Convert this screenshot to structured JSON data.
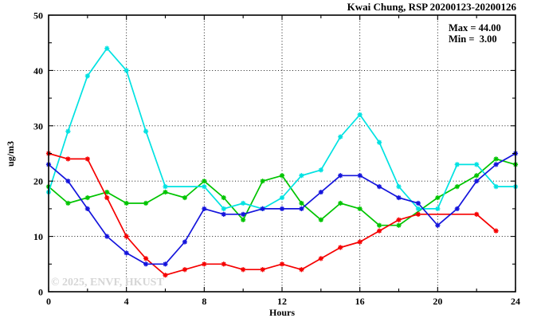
{
  "chart_data": {
    "type": "line",
    "title": "Kwai Chung, RSP 20200123-20200126",
    "annotation": {
      "max_label": "Max = 44.00",
      "min_label": "Min =  3.00"
    },
    "xlabel": "Hours",
    "ylabel": "ug/m3",
    "watermark": "© 2025, ENVF, HKUST",
    "xlim": [
      0,
      24
    ],
    "ylim": [
      0,
      50
    ],
    "xticks": [
      0,
      4,
      8,
      12,
      16,
      20,
      24
    ],
    "yticks": [
      0,
      10,
      20,
      30,
      40,
      50
    ],
    "x_minor_step": 2,
    "y_minor_step": 5,
    "grid": "dotted",
    "legend_position": "none",
    "x": [
      0,
      1,
      2,
      3,
      4,
      5,
      6,
      7,
      8,
      9,
      10,
      11,
      12,
      13,
      14,
      15,
      16,
      17,
      18,
      19,
      20,
      21,
      22,
      23,
      24
    ],
    "series": [
      {
        "name": "series-green",
        "color": "#00c400",
        "values": [
          19,
          16,
          17,
          18,
          16,
          16,
          18,
          17,
          20,
          17,
          13,
          20,
          21,
          16,
          13,
          16,
          15,
          12,
          12,
          null,
          17,
          19,
          21,
          24,
          23
        ]
      },
      {
        "name": "series-cyan",
        "color": "#00e2e2",
        "values": [
          18,
          29,
          39,
          44,
          40,
          29,
          19,
          null,
          19,
          15,
          16,
          15,
          17,
          21,
          22,
          28,
          32,
          27,
          19,
          15,
          15,
          23,
          23,
          19,
          19
        ]
      },
      {
        "name": "series-red",
        "color": "#f50000",
        "values": [
          25,
          24,
          24,
          17,
          10,
          6,
          3,
          4,
          5,
          5,
          4,
          4,
          5,
          4,
          6,
          8,
          9,
          11,
          13,
          14,
          null,
          null,
          14,
          11,
          null
        ]
      },
      {
        "name": "series-blue",
        "color": "#1414dc",
        "values": [
          23,
          20,
          15,
          10,
          7,
          5,
          5,
          9,
          15,
          14,
          14,
          15,
          15,
          15,
          18,
          21,
          21,
          19,
          17,
          16,
          12,
          15,
          20,
          23,
          25
        ]
      }
    ]
  }
}
